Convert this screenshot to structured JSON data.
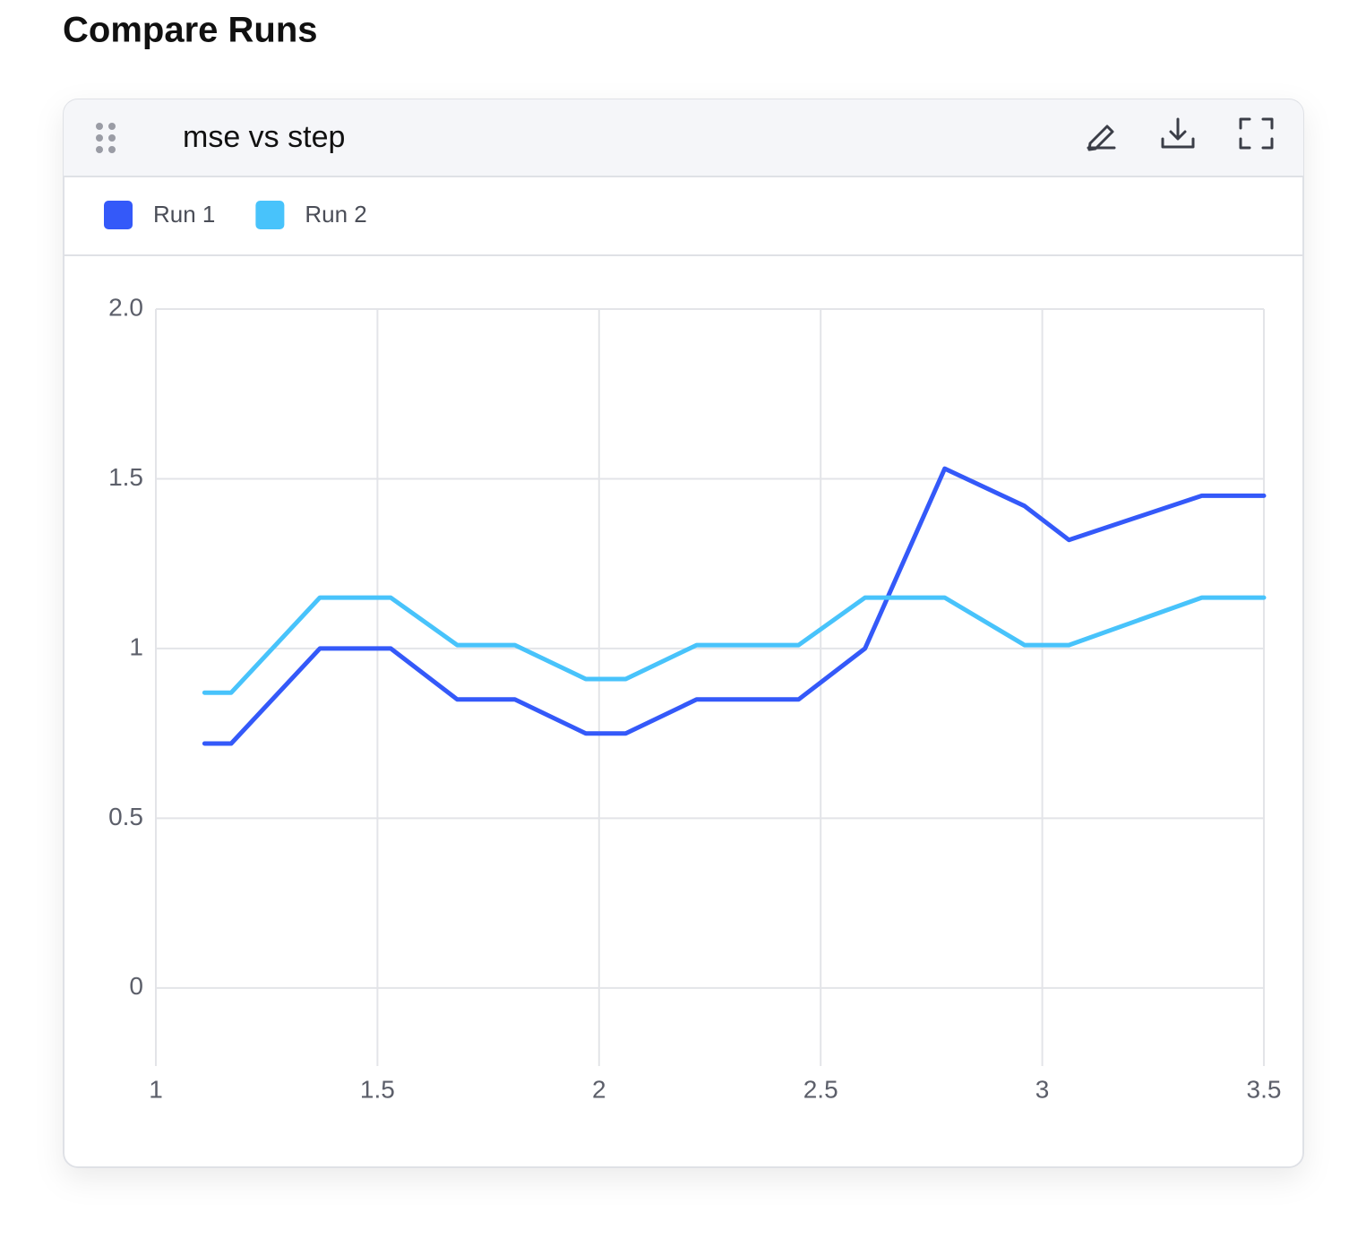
{
  "heading": "Compare Runs",
  "chart_data": {
    "type": "line",
    "title": "mse vs step",
    "x": [
      1.11,
      1.17,
      1.37,
      1.53,
      1.68,
      1.81,
      1.97,
      2.06,
      2.22,
      2.45,
      2.6,
      2.78,
      2.96,
      3.06,
      3.36,
      3.5
    ],
    "series": [
      {
        "name": "Run 1",
        "color": "#3459f9",
        "values": [
          0.72,
          0.72,
          1.0,
          1.0,
          0.85,
          0.85,
          0.75,
          0.75,
          0.85,
          0.85,
          1.0,
          1.53,
          1.42,
          1.32,
          1.45,
          1.45
        ]
      },
      {
        "name": "Run 2",
        "color": "#48c3fb",
        "values": [
          0.87,
          0.87,
          1.15,
          1.15,
          1.01,
          1.01,
          0.91,
          0.91,
          1.01,
          1.01,
          1.15,
          1.15,
          1.01,
          1.01,
          1.15,
          1.15
        ]
      }
    ],
    "xlim": [
      1,
      3.5
    ],
    "xticks": [
      1,
      1.5,
      2,
      2.5,
      3,
      3.5
    ],
    "ylim": [
      -0.23,
      2.0
    ],
    "yticks": [
      0,
      0.5,
      1,
      1.5,
      {
        "value": 2,
        "label": "2.0"
      }
    ],
    "grid": true,
    "legend": "top-left"
  }
}
